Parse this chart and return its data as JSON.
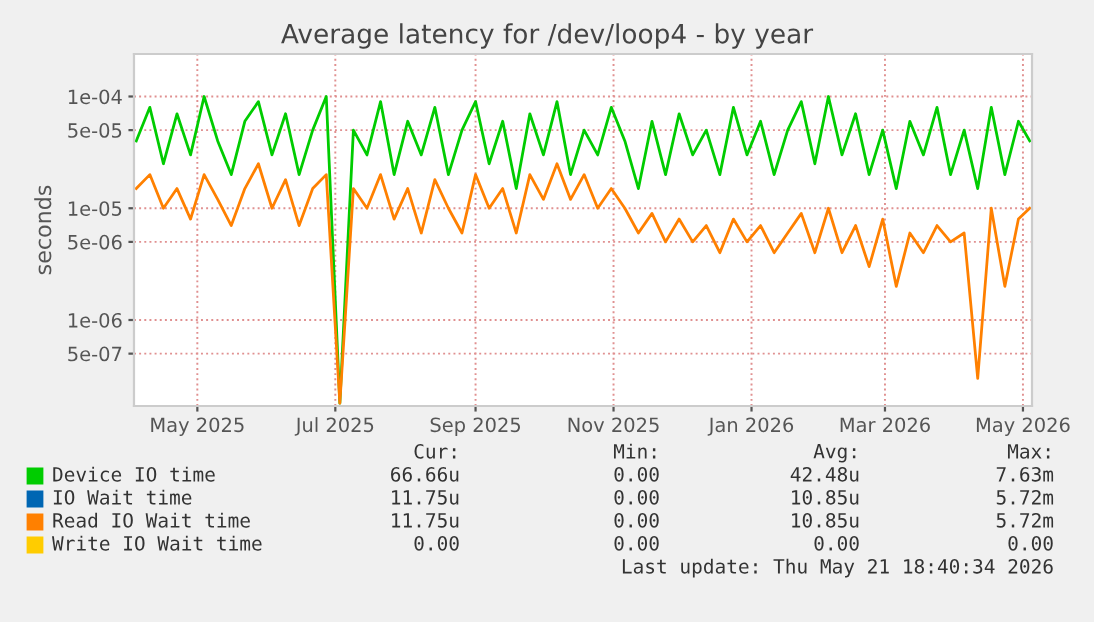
{
  "chart_data": {
    "type": "line",
    "title": "Average latency for /dev/loop4 - by year",
    "ylabel": "seconds",
    "log": "y",
    "grid": true,
    "legend": "bottom",
    "x": [
      "2025-04-04",
      "2025-04-10",
      "2025-04-16",
      "2025-04-22",
      "2025-04-28",
      "2025-05-04",
      "2025-05-10",
      "2025-05-16",
      "2025-05-22",
      "2025-05-28",
      "2025-06-03",
      "2025-06-09",
      "2025-06-15",
      "2025-06-21",
      "2025-06-27",
      "2025-07-03",
      "2025-07-09",
      "2025-07-15",
      "2025-07-21",
      "2025-07-27",
      "2025-08-02",
      "2025-08-08",
      "2025-08-14",
      "2025-08-20",
      "2025-08-26",
      "2025-09-01",
      "2025-09-07",
      "2025-09-13",
      "2025-09-19",
      "2025-09-25",
      "2025-10-01",
      "2025-10-07",
      "2025-10-13",
      "2025-10-19",
      "2025-10-25",
      "2025-10-31",
      "2025-11-06",
      "2025-11-12",
      "2025-11-18",
      "2025-11-24",
      "2025-11-30",
      "2025-12-06",
      "2025-12-12",
      "2025-12-18",
      "2025-12-24",
      "2025-12-30",
      "2026-01-05",
      "2026-01-11",
      "2026-01-17",
      "2026-01-23",
      "2026-01-29",
      "2026-02-04",
      "2026-02-10",
      "2026-02-16",
      "2026-02-22",
      "2026-02-28",
      "2026-03-06",
      "2026-03-12",
      "2026-03-18",
      "2026-03-24",
      "2026-03-30",
      "2026-04-05",
      "2026-04-11",
      "2026-04-17",
      "2026-04-23",
      "2026-04-29",
      "2026-05-04"
    ],
    "xlim": [
      "2025-04-03",
      "2026-05-05"
    ],
    "xticks": [
      {
        "value": "2025-05-01",
        "label": "May 2025"
      },
      {
        "value": "2025-07-01",
        "label": "Jul 2025"
      },
      {
        "value": "2025-09-01",
        "label": "Sep 2025"
      },
      {
        "value": "2025-11-01",
        "label": "Nov 2025"
      },
      {
        "value": "2026-01-01",
        "label": "Jan 2026"
      },
      {
        "value": "2026-03-01",
        "label": "Mar 2026"
      },
      {
        "value": "2026-05-01",
        "label": "May 2026"
      }
    ],
    "ylim": [
      1.7e-07,
      0.00024
    ],
    "yticks": [
      {
        "value": 0.0001,
        "label": "1e-04"
      },
      {
        "value": 5e-05,
        "label": "5e-05"
      },
      {
        "value": 1e-05,
        "label": "1e-05"
      },
      {
        "value": 5e-06,
        "label": "5e-06"
      },
      {
        "value": 1e-06,
        "label": "1e-06"
      },
      {
        "value": 5e-07,
        "label": "5e-07"
      }
    ],
    "series": [
      {
        "name": "Device IO time",
        "color": "#00cc00",
        "values": [
          4e-05,
          8e-05,
          2.5e-05,
          7e-05,
          3e-05,
          0.0001,
          4e-05,
          2e-05,
          6e-05,
          9e-05,
          3e-05,
          7e-05,
          2e-05,
          5e-05,
          0.0001,
          1.8e-07,
          5e-05,
          3e-05,
          9e-05,
          2e-05,
          6e-05,
          3e-05,
          8e-05,
          2e-05,
          5e-05,
          9e-05,
          2.5e-05,
          6e-05,
          1.5e-05,
          7e-05,
          3e-05,
          9e-05,
          2e-05,
          5e-05,
          3e-05,
          8e-05,
          4e-05,
          1.5e-05,
          6e-05,
          2e-05,
          7e-05,
          3e-05,
          5e-05,
          2e-05,
          8e-05,
          3e-05,
          6e-05,
          2e-05,
          5e-05,
          9e-05,
          2.5e-05,
          0.0001,
          3e-05,
          7e-05,
          2e-05,
          5e-05,
          1.5e-05,
          6e-05,
          3e-05,
          8e-05,
          2e-05,
          5e-05,
          1.5e-05,
          8e-05,
          2e-05,
          6e-05,
          4e-05
        ]
      },
      {
        "name": "IO Wait time",
        "color": "#0066b3",
        "values": [
          null,
          null,
          null,
          null,
          null,
          null,
          null,
          null,
          null,
          null,
          null,
          null,
          null,
          null,
          null,
          null,
          null,
          null,
          null,
          null,
          null,
          null,
          null,
          null,
          null,
          null,
          null,
          null,
          null,
          null,
          null,
          null,
          null,
          null,
          null,
          null,
          null,
          null,
          null,
          null,
          null,
          null,
          null,
          null,
          null,
          null,
          null,
          null,
          null,
          null,
          null,
          null,
          null,
          null,
          null,
          null,
          null,
          null,
          null,
          null,
          null,
          null,
          null,
          null,
          null,
          null,
          null
        ]
      },
      {
        "name": "Read IO Wait time",
        "color": "#ff8000",
        "values": [
          1.5e-05,
          2e-05,
          1e-05,
          1.5e-05,
          8e-06,
          2e-05,
          1.2e-05,
          7e-06,
          1.5e-05,
          2.5e-05,
          1e-05,
          1.8e-05,
          7e-06,
          1.5e-05,
          2e-05,
          1.8e-07,
          1.5e-05,
          1e-05,
          2e-05,
          8e-06,
          1.5e-05,
          6e-06,
          1.8e-05,
          1e-05,
          6e-06,
          2e-05,
          1e-05,
          1.5e-05,
          6e-06,
          2e-05,
          1.2e-05,
          2.5e-05,
          1.2e-05,
          2e-05,
          1e-05,
          1.5e-05,
          1e-05,
          6e-06,
          9e-06,
          5e-06,
          8e-06,
          5e-06,
          7e-06,
          4e-06,
          8e-06,
          5e-06,
          7e-06,
          4e-06,
          6e-06,
          9e-06,
          4e-06,
          1e-05,
          4e-06,
          7e-06,
          3e-06,
          8e-06,
          2e-06,
          6e-06,
          4e-06,
          7e-06,
          5e-06,
          6e-06,
          3e-07,
          1e-05,
          2e-06,
          8e-06,
          1e-05
        ]
      },
      {
        "name": "Write IO Wait time",
        "color": "#ffcc00",
        "values": [
          null,
          null,
          null,
          null,
          null,
          null,
          null,
          null,
          null,
          null,
          null,
          null,
          null,
          null,
          null,
          null,
          null,
          null,
          null,
          null,
          null,
          null,
          null,
          null,
          null,
          null,
          null,
          null,
          null,
          null,
          null,
          null,
          null,
          null,
          null,
          null,
          null,
          null,
          null,
          null,
          null,
          null,
          null,
          null,
          null,
          null,
          null,
          null,
          null,
          null,
          null,
          null,
          null,
          null,
          null,
          null,
          null,
          null,
          null,
          null,
          null,
          null,
          null,
          null,
          null,
          null,
          null
        ]
      }
    ],
    "annotations": [
      "Cur:",
      "Min:",
      "Avg:",
      "Max:",
      "66.66u",
      "0.00",
      "42.48u",
      "7.63m",
      "11.75u",
      "0.00",
      "10.85u",
      "5.72m",
      "11.75u",
      "0.00",
      "10.85u",
      "5.72m",
      "0.00",
      "0.00",
      "0.00",
      "0.00",
      "Last update: Thu May 21 18:40:34 2026"
    ]
  }
}
